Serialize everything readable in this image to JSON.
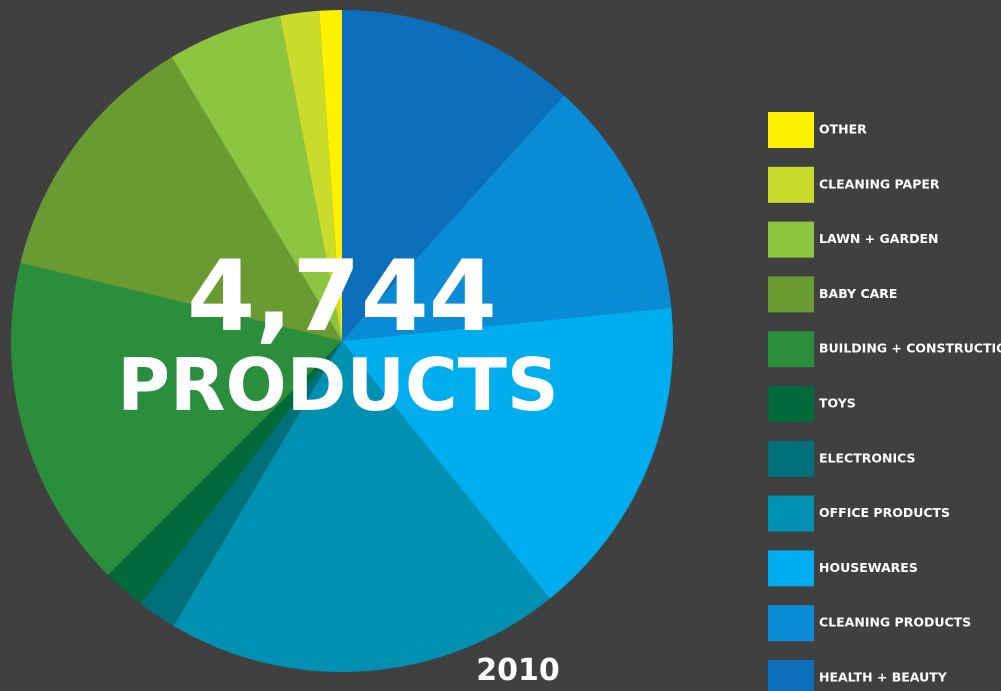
{
  "chart_data": {
    "type": "pie",
    "headline": "4,744",
    "subtitle": "PRODUCTS",
    "year": "2010",
    "categories": [
      "HEALTH + BEAUTY",
      "CLEANING PRODUCTS",
      "HOUSEWARES",
      "OFFICE PRODUCTS",
      "ELECTRONICS",
      "TOYS",
      "BUILDING + CONSTRUCTION",
      "BABY CARE",
      "LAWN + GARDEN",
      "CLEANING PAPER",
      "OTHER"
    ],
    "values": [
      11.7,
      11.7,
      15.8,
      19.3,
      1.9,
      2.1,
      16.3,
      12.6,
      5.6,
      1.9,
      1.1
    ],
    "colors": [
      "#0b6fbb",
      "#0a8bd5",
      "#00adee",
      "#0090b2",
      "#00707b",
      "#006a3a",
      "#2b8e3d",
      "#6a9a32",
      "#8cc53f",
      "#cbdb2b",
      "#fff200"
    ],
    "legend": "right"
  }
}
